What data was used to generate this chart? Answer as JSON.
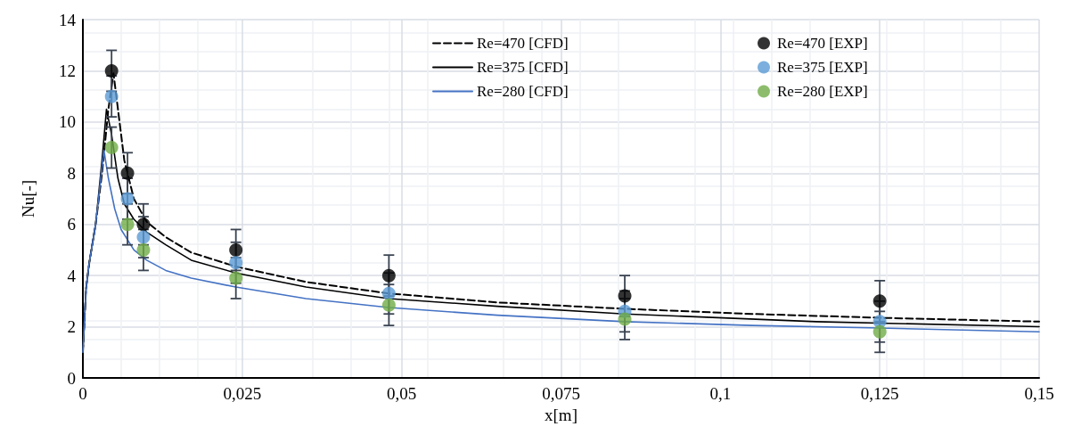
{
  "chart_data": {
    "type": "line",
    "xlabel": "x[m]",
    "ylabel": "Nu[-]",
    "xlim": [
      0,
      0.15
    ],
    "ylim": [
      0,
      14
    ],
    "xticks": [
      0,
      {
        "value": 0.025,
        "label": "0,025"
      },
      {
        "value": 0.05,
        "label": "0,05"
      },
      {
        "value": 0.075,
        "label": "0,075"
      },
      {
        "value": 0.1,
        "label": "0,1"
      },
      {
        "value": 0.125,
        "label": "0,125"
      },
      {
        "value": 0.15,
        "label": "0,15"
      }
    ],
    "yticks": [
      0,
      2,
      4,
      6,
      8,
      10,
      12,
      14
    ],
    "grid": true,
    "legend": "top",
    "series": [
      {
        "name": "Re=470 [CFD]",
        "color": "#000000",
        "line_style": "dashed",
        "marker": "none",
        "x": [
          0,
          0.0005,
          0.001,
          0.002,
          0.003,
          0.004,
          0.0048,
          0.0055,
          0.0065,
          0.008,
          0.01,
          0.013,
          0.017,
          0.024,
          0.035,
          0.048,
          0.065,
          0.085,
          0.105,
          0.125,
          0.15
        ],
        "values": [
          1,
          3.5,
          4.5,
          6,
          8,
          10.5,
          11.9,
          10.5,
          8.5,
          7,
          6.1,
          5.5,
          4.9,
          4.35,
          3.75,
          3.3,
          2.95,
          2.7,
          2.5,
          2.35,
          2.2
        ]
      },
      {
        "name": "Re=375 [CFD]",
        "color": "#000000",
        "line_style": "solid",
        "marker": "none",
        "x": [
          0,
          0.0005,
          0.001,
          0.002,
          0.003,
          0.0037,
          0.0045,
          0.0055,
          0.0065,
          0.008,
          0.01,
          0.013,
          0.017,
          0.024,
          0.035,
          0.048,
          0.065,
          0.085,
          0.115,
          0.15
        ],
        "values": [
          1,
          3.5,
          4.5,
          6,
          8.5,
          10.5,
          9.5,
          7.8,
          6.8,
          6.2,
          5.7,
          5.2,
          4.6,
          4.1,
          3.55,
          3.1,
          2.8,
          2.5,
          2.2,
          2.0
        ]
      },
      {
        "name": "Re=280 [CFD]",
        "color": "#4472c4",
        "line_style": "solid",
        "marker": "none",
        "x": [
          0,
          0.0005,
          0.001,
          0.002,
          0.0033,
          0.004,
          0.005,
          0.006,
          0.008,
          0.01,
          0.013,
          0.017,
          0.024,
          0.035,
          0.048,
          0.065,
          0.085,
          0.105,
          0.125,
          0.15
        ],
        "values": [
          1,
          3.5,
          4.5,
          6,
          8.9,
          7.8,
          6.6,
          5.8,
          5.0,
          4.6,
          4.2,
          3.9,
          3.55,
          3.1,
          2.75,
          2.45,
          2.2,
          2.05,
          1.95,
          1.8
        ]
      },
      {
        "name": "Re=470 [EXP]",
        "type": "scatter",
        "color": "#000000",
        "marker": "circle",
        "x": [
          0.0045,
          0.007,
          0.0095,
          0.024,
          0.048,
          0.085,
          0.125
        ],
        "values": [
          12,
          8,
          6,
          5,
          4,
          3.2,
          3
        ],
        "errors": [
          0.8,
          0.8,
          0.8,
          0.8,
          0.8,
          0.8,
          0.8
        ]
      },
      {
        "name": "Re=375 [EXP]",
        "type": "scatter",
        "color": "#5b9bd5",
        "marker": "circle",
        "x": [
          0.0045,
          0.007,
          0.0095,
          0.024,
          0.048,
          0.085,
          0.125
        ],
        "values": [
          11,
          7,
          5.5,
          4.5,
          3.3,
          2.6,
          2.2
        ],
        "errors": [
          0.8,
          0.8,
          0.8,
          0.8,
          0.8,
          0.8,
          0.8
        ]
      },
      {
        "name": "Re=280 [EXP]",
        "type": "scatter",
        "color": "#70ad47",
        "marker": "circle",
        "x": [
          0.0045,
          0.007,
          0.0095,
          0.024,
          0.048,
          0.085,
          0.125
        ],
        "values": [
          9,
          6,
          5,
          3.9,
          2.85,
          2.3,
          1.8
        ],
        "errors": [
          0.8,
          0.8,
          0.8,
          0.8,
          0.8,
          0.8,
          0.8
        ]
      }
    ]
  }
}
